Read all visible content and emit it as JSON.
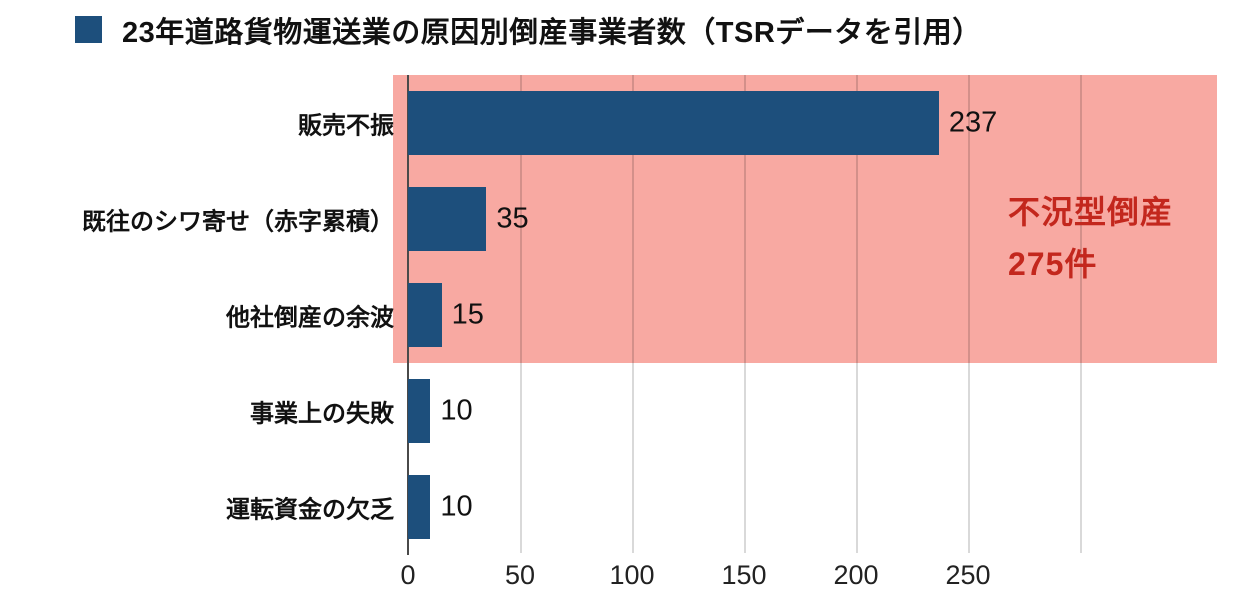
{
  "title": {
    "text": "23年道路貨物運送業の原因別倒産事業者数（TSRデータを引用）"
  },
  "colors": {
    "bar": "#1D4F7C",
    "legend_marker": "#1D4F7C",
    "highlight_band": "#F8A9A2",
    "annotation_text": "#C3271D",
    "gridline": "#D9D9D9",
    "axis_line": "#4A4A4A"
  },
  "chart_data": {
    "type": "bar",
    "orientation": "horizontal",
    "title": "23年道路貨物運送業の原因別倒産事業者数（TSRデータを引用）",
    "categories": [
      "販売不振",
      "既往のシワ寄せ（赤字累積）",
      "他社倒産の余波",
      "事業上の失敗",
      "運転資金の欠乏"
    ],
    "values": [
      237,
      35,
      15,
      10,
      10
    ],
    "xlabel": "",
    "ylabel": "",
    "xlim": [
      0,
      362
    ],
    "x_ticks": [
      0,
      50,
      100,
      150,
      200,
      250
    ],
    "gridlines_at": [
      50,
      100,
      150,
      200,
      250,
      300
    ],
    "grid": true,
    "legend_position": "top-left",
    "highlight_band": {
      "covers_rows_from": 0,
      "covers_rows_to": 2
    },
    "annotation": {
      "line1": "不況型倒産",
      "line2": "275件",
      "total": 275
    }
  }
}
